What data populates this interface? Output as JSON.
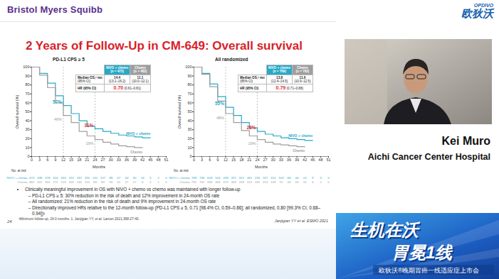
{
  "page": {
    "brand": "Bristol Myers Squibb",
    "logo": {
      "name": "OPDIVO",
      "name_cn": "欧狄沃"
    },
    "slide": {
      "title": "2 Years of Follow-Up in CM-649: Overall survival",
      "bullets": [
        {
          "text": "Clinically meaningful improvement in OS with NIVO + chemo vs chemo was maintained with longer follow-up",
          "sub": [
            "PD-L1 CPS ≥ 5: 30% reduction in the risk of death and 12% improvement in 24-month OS rate",
            "All randomized: 21% reduction in the risk of death and 9% improvement in 24-month OS rate",
            "Directionally improved HRs relative to the 12-month follow-up (PD-L1 CPS ≥ 5, 0.71 [98.4% CI, 0.59–0.86]; all randomized, 0.80 [99.3% CI, 0.68–0.94])¹"
          ]
        }
      ],
      "footnote": "ᵃMinimum follow-up, 24.0 months. 1. Janjigian YY, et al. Lancet 2021;398:27-40.",
      "page_number": "24",
      "source": "Janjigian YY et al. ESMO 2021"
    },
    "speaker": {
      "name": "Kei Muro",
      "affiliation": "Aichi Cancer Center Hospital"
    },
    "banner": {
      "line1": "生机在沃",
      "line2": "胃冕1线",
      "subtitle": "欧狄沃®晚期胃癌一线适应症上市会"
    }
  },
  "chart_data": [
    {
      "type": "line",
      "title": "PD-L1 CPS ≥ 5",
      "x_label": "Months",
      "y_label": "Overall survival (%)",
      "line_style": "step",
      "x": [
        0,
        3,
        6,
        9,
        12,
        15,
        18,
        21,
        24,
        27,
        30,
        33,
        36,
        39,
        42,
        45
      ],
      "series": [
        {
          "name": "NIVO + chemo",
          "color": "#27a9c6",
          "values": [
            100,
            93,
            82,
            68,
            57,
            48,
            40,
            34,
            31,
            28,
            26,
            24,
            23,
            22,
            21,
            21
          ]
        },
        {
          "name": "Chemo",
          "color": "#9e9e9e",
          "values": [
            100,
            91,
            77,
            60,
            46,
            38,
            28,
            23,
            19,
            16,
            14,
            12,
            11,
            10,
            10,
            null
          ]
        }
      ],
      "xlim": [
        0,
        51
      ],
      "xticks": [
        0,
        3,
        6,
        9,
        12,
        15,
        18,
        21,
        24,
        27,
        30,
        33,
        36,
        39,
        42,
        45,
        48,
        51
      ],
      "ylim": [
        0,
        100
      ],
      "yticks": [
        0,
        10,
        20,
        30,
        40,
        50,
        60,
        70,
        80,
        90,
        100
      ],
      "annotations": [
        {
          "series": "NIVO + chemo",
          "x": 12,
          "value": 57,
          "label": "57%",
          "color": "#27a9c6"
        },
        {
          "series": "Chemo",
          "x": 12,
          "value": 46,
          "label": "46%",
          "color": "#9e9e9e"
        },
        {
          "series": "NIVO + chemo",
          "x": 24,
          "value": 31,
          "label": "31%",
          "color": "#e0302f"
        },
        {
          "series": "Chemo",
          "x": 24,
          "value": 19,
          "label": "19%",
          "color": "#9e9e9e"
        }
      ],
      "summary": {
        "row_label": "Median OS,ᵃ mo",
        "ci_label": "(95% CI)",
        "groups": [
          {
            "name": "NIVO + chemo",
            "n": "(n = 473)",
            "median": 14.4,
            "ci": "(13.1–16.2)"
          },
          {
            "name": "Chemo",
            "n": "(n = 482)",
            "median": 11.1,
            "ci": "(10.0–12.1)"
          }
        ],
        "hr": {
          "label": "HR (95% CI)",
          "value": 0.7,
          "value_label": "0.70",
          "ci": "(0.61–0.81)"
        }
      },
      "at_risk": {
        "label": "No. at risk",
        "rows": [
          {
            "name": "NIVO + chemo",
            "values": [
              473,
              439,
              378,
              314,
              263,
              223,
              187,
              155,
              141,
              127,
              98,
              67,
              44,
              30,
              16,
              5,
              2,
              0
            ]
          },
          {
            "name": "Chemo",
            "values": [
              482,
              421,
              350,
              271,
              213,
              169,
              140,
              115,
              99,
              83,
              59,
              41,
              27,
              17,
              6,
              2,
              1,
              0
            ]
          }
        ]
      }
    },
    {
      "type": "line",
      "title": "All randomized",
      "x_label": "Months",
      "y_label": "Overall survival (%)",
      "line_style": "step",
      "x": [
        0,
        3,
        6,
        9,
        12,
        15,
        18,
        21,
        24,
        27,
        30,
        33,
        36,
        39,
        42,
        45
      ],
      "series": [
        {
          "name": "NIVO + chemo",
          "color": "#27a9c6",
          "values": [
            100,
            93,
            81,
            67,
            55,
            46,
            38,
            32,
            28,
            25,
            23,
            21,
            20,
            19,
            18,
            18
          ]
        },
        {
          "name": "Chemo",
          "color": "#9e9e9e",
          "values": [
            100,
            92,
            78,
            62,
            48,
            38,
            29,
            23,
            19,
            16,
            14,
            13,
            12,
            11,
            11,
            null
          ]
        }
      ],
      "xlim": [
        0,
        51
      ],
      "xticks": [
        0,
        3,
        6,
        9,
        12,
        15,
        18,
        21,
        24,
        27,
        30,
        33,
        36,
        39,
        42,
        45,
        48,
        51
      ],
      "ylim": [
        0,
        100
      ],
      "yticks": [
        0,
        10,
        20,
        30,
        40,
        50,
        60,
        70,
        80,
        90,
        100
      ],
      "annotations": [
        {
          "series": "NIVO + chemo",
          "x": 12,
          "value": 55,
          "label": "55%",
          "color": "#27a9c6"
        },
        {
          "series": "Chemo",
          "x": 12,
          "value": 48,
          "label": "48%",
          "color": "#9e9e9e"
        },
        {
          "series": "NIVO + chemo",
          "x": 24,
          "value": 28,
          "label": "28%",
          "color": "#e0302f"
        },
        {
          "series": "Chemo",
          "x": 24,
          "value": 19,
          "label": "19%",
          "color": "#9e9e9e"
        }
      ],
      "summary": {
        "row_label": "Median OS,ᵃ mo",
        "ci_label": "(95% CI)",
        "groups": [
          {
            "name": "NIVO + chemo",
            "n": "(n = 789)",
            "median": 13.8,
            "ci": "(12.4–14.5)"
          },
          {
            "name": "Chemo",
            "n": "(n = 792)",
            "median": 11.6,
            "ci": "(10.9–12.5)"
          }
        ],
        "hr": {
          "label": "HR (95% CI)",
          "value": 0.79,
          "value_label": "0.79",
          "ci": "(0.71–0.88)"
        }
      },
      "at_risk": {
        "label": "No. at risk",
        "rows": [
          {
            "name": "NIVO + chemo",
            "values": [
              789,
              733,
              628,
              524,
              439,
              372,
              312,
              262,
              235,
              207,
              152,
              103,
              68,
              44,
              24,
              9,
              3,
              0
            ]
          },
          {
            "name": "Chemo",
            "values": [
              792,
              701,
              595,
              463,
              375,
              309,
              259,
              213,
              181,
              153,
              109,
              70,
              44,
              26,
              10,
              4,
              2,
              0
            ]
          }
        ]
      }
    }
  ]
}
